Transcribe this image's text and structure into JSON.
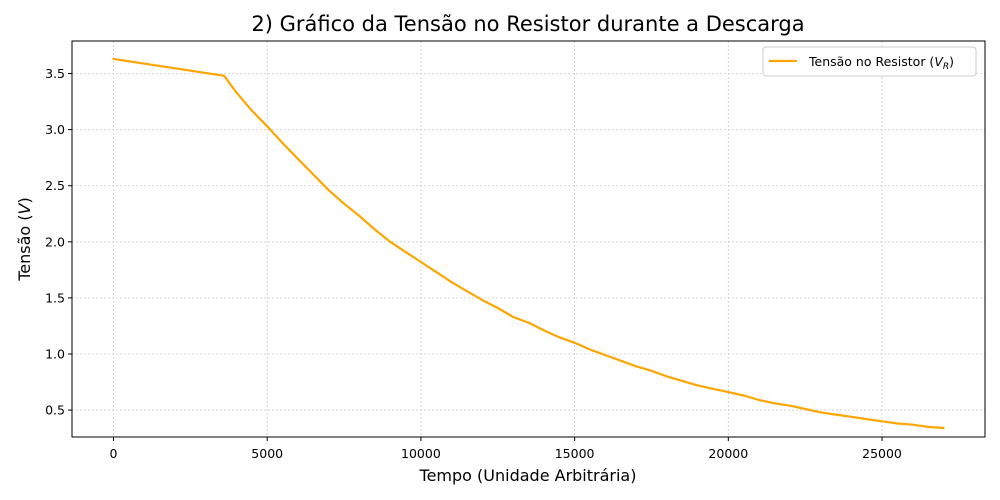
{
  "chart_data": {
    "type": "line",
    "title": "2) Gráfico da Tensão no Resistor durante a Descarga",
    "xlabel": "Tempo (Unidade Arbitrária)",
    "ylabel": "Tensão (V)",
    "xlim": [
      -1350,
      28350
    ],
    "ylim": [
      0.26,
      3.79
    ],
    "xticks": [
      0,
      5000,
      10000,
      15000,
      20000,
      25000
    ],
    "xtick_labels": [
      "0",
      "5000",
      "10000",
      "15000",
      "20000",
      "25000"
    ],
    "yticks": [
      0.5,
      1.0,
      1.5,
      2.0,
      2.5,
      3.0,
      3.5
    ],
    "ytick_labels": [
      "0.5",
      "1.0",
      "1.5",
      "2.0",
      "2.5",
      "3.0",
      "3.5"
    ],
    "grid": true,
    "legend_position": "top-right",
    "series": [
      {
        "name": "Tensão no Resistor (VR)",
        "color": "#FFA500",
        "x": [
          0,
          3600,
          4000,
          4500,
          5000,
          5500,
          6000,
          6500,
          7000,
          7500,
          8000,
          8500,
          9000,
          9500,
          10000,
          10500,
          11000,
          11500,
          12000,
          12500,
          13000,
          13500,
          14000,
          14500,
          15000,
          15500,
          16000,
          16500,
          17000,
          17500,
          18000,
          18500,
          19000,
          19500,
          20000,
          20500,
          21000,
          21500,
          22000,
          22500,
          23000,
          23500,
          24000,
          24500,
          25000,
          25500,
          26000,
          26500,
          27000
        ],
        "y": [
          3.63,
          3.48,
          3.33,
          3.17,
          3.03,
          2.88,
          2.74,
          2.6,
          2.46,
          2.34,
          2.23,
          2.11,
          2.0,
          1.91,
          1.82,
          1.73,
          1.64,
          1.56,
          1.48,
          1.41,
          1.33,
          1.28,
          1.21,
          1.15,
          1.1,
          1.04,
          0.99,
          0.94,
          0.89,
          0.85,
          0.8,
          0.76,
          0.72,
          0.69,
          0.66,
          0.63,
          0.59,
          0.56,
          0.54,
          0.51,
          0.48,
          0.46,
          0.44,
          0.42,
          0.4,
          0.38,
          0.37,
          0.35,
          0.34
        ]
      }
    ]
  }
}
